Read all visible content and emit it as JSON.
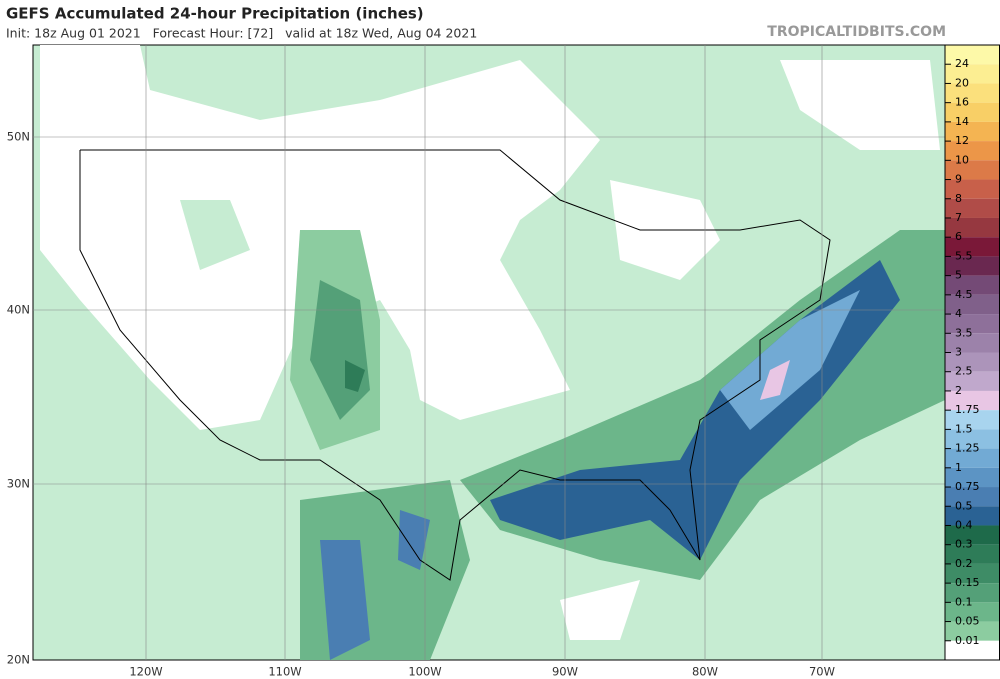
{
  "header": {
    "title": "GEFS Accumulated 24-hour Precipitation (inches)",
    "subtitle": "Init: 18z Aug 01 2021   Forecast Hour: [72]   valid at 18z Wed, Aug 04 2021",
    "source": "TROPICALTIDBITS.COM"
  },
  "axes": {
    "lat_labels": [
      "50N",
      "40N",
      "30N",
      "20N"
    ],
    "lon_labels": [
      "120W",
      "110W",
      "100W",
      "90W",
      "80W",
      "70W"
    ]
  },
  "colorbar": {
    "labels": [
      "24",
      "20",
      "16",
      "14",
      "12",
      "10",
      "9",
      "8",
      "7",
      "6",
      "5.5",
      "5",
      "4.5",
      "4",
      "3.5",
      "3",
      "2.5",
      "2",
      "1.75",
      "1.5",
      "1.25",
      "1",
      "0.75",
      "0.5",
      "0.4",
      "0.3",
      "0.2",
      "0.15",
      "0.1",
      "0.05",
      "0.01"
    ],
    "colors": [
      "#fdf9a8",
      "#fcee92",
      "#fbe07c",
      "#f8cf66",
      "#f4b452",
      "#ec9648",
      "#dc7a48",
      "#c8604a",
      "#b04c48",
      "#963840",
      "#7a1838",
      "#6a2850",
      "#744a76",
      "#80608a",
      "#8e709a",
      "#9c82aa",
      "#ac94ba",
      "#c0a8cc",
      "#e8c6e4",
      "#a8d4ee",
      "#8cc0e2",
      "#72aad4",
      "#5c94c4",
      "#4a7eb2",
      "#2a6294",
      "#1e6a4a",
      "#2e7c58",
      "#3e8c66",
      "#54a078",
      "#6cb68a",
      "#8ccca0",
      "#ffffff"
    ]
  }
}
